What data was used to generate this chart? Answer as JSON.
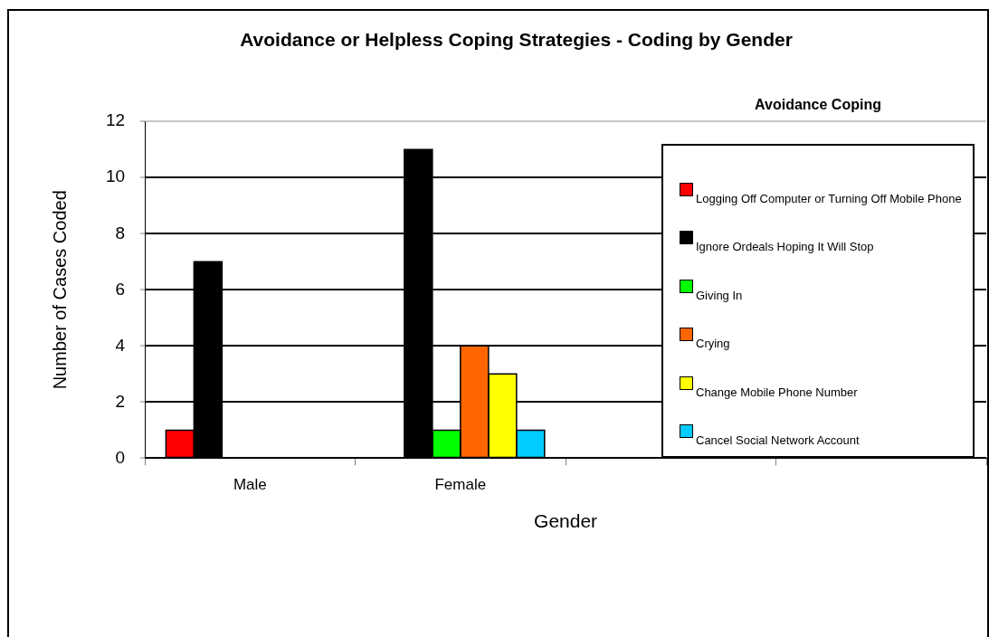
{
  "chart_data": {
    "type": "bar",
    "title": "Avoidance or Helpless Coping Strategies - Coding by Gender",
    "xlabel": "Gender",
    "ylabel": "Number of Cases Coded",
    "categories": [
      "Male",
      "Female",
      null,
      null
    ],
    "series": [
      {
        "name": "Logging Off Computer or Turning Off Mobile Phone",
        "color": "#ff0000",
        "values": [
          1,
          null,
          null,
          null
        ]
      },
      {
        "name": "Ignore Ordeals Hoping It Will Stop",
        "color": "#000000",
        "values": [
          7,
          11,
          null,
          null
        ]
      },
      {
        "name": "Giving In",
        "color": "#00ff00",
        "values": [
          null,
          1,
          null,
          null
        ]
      },
      {
        "name": "Crying",
        "color": "#ff6600",
        "values": [
          null,
          4,
          null,
          null
        ]
      },
      {
        "name": "Change Mobile Phone Number",
        "color": "#ffff00",
        "values": [
          null,
          3,
          null,
          null
        ]
      },
      {
        "name": "Cancel Social Network Account",
        "color": "#00ccff",
        "values": [
          null,
          1,
          null,
          null
        ]
      }
    ],
    "ylim": [
      0,
      12
    ],
    "yticks": [
      0,
      2,
      4,
      6,
      8,
      10,
      12
    ],
    "grid": "y",
    "legend": "right",
    "legend_title": "Avoidance Coping"
  }
}
